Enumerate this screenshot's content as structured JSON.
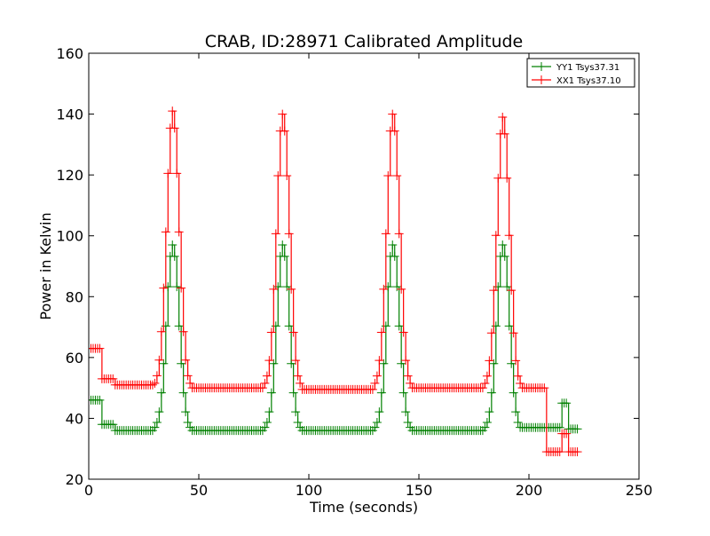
{
  "chart_data": {
    "type": "line",
    "title": "CRAB, ID:28971 Calibrated Amplitude",
    "xlabel": "Time (seconds)",
    "ylabel": "Power in Kelvin",
    "xlim": [
      0,
      250
    ],
    "ylim": [
      20,
      160
    ],
    "xticks": [
      0,
      50,
      100,
      150,
      200,
      250
    ],
    "yticks": [
      20,
      40,
      60,
      80,
      100,
      120,
      140,
      160
    ],
    "grid": false,
    "legend_position": "top-right",
    "marker": "+",
    "sample_step_seconds": 1,
    "series": [
      {
        "name": "YY1 Tsys37.31",
        "color": "#008000",
        "segments": [
          {
            "from": 0,
            "to": 5,
            "value": 46
          },
          {
            "from": 6,
            "to": 11,
            "value": 38
          },
          {
            "from": 12,
            "to": 29,
            "value": 36
          },
          {
            "peak_start": 30,
            "peak_end": 46,
            "peak_time": 38,
            "peak_value": 97,
            "base": 36
          },
          {
            "from": 47,
            "to": 79,
            "value": 36
          },
          {
            "peak_start": 80,
            "peak_end": 96,
            "peak_time": 88,
            "peak_value": 97,
            "base": 36
          },
          {
            "from": 97,
            "to": 129,
            "value": 36
          },
          {
            "peak_start": 130,
            "peak_end": 146,
            "peak_time": 138,
            "peak_value": 97,
            "base": 36
          },
          {
            "from": 147,
            "to": 179,
            "value": 36
          },
          {
            "peak_start": 180,
            "peak_end": 196,
            "peak_time": 188,
            "peak_value": 97,
            "base": 36
          },
          {
            "from": 197,
            "to": 214,
            "value": 37
          },
          {
            "from": 215,
            "to": 217,
            "value": 45
          },
          {
            "from": 218,
            "to": 222,
            "value": 36.5
          }
        ]
      },
      {
        "name": "XX1 Tsys37.10",
        "color": "#ff0000",
        "segments": [
          {
            "from": 0,
            "to": 5,
            "value": 63
          },
          {
            "from": 6,
            "to": 11,
            "value": 53
          },
          {
            "from": 12,
            "to": 29,
            "value": 51
          },
          {
            "peak_start": 30,
            "peak_end": 46,
            "peak_time": 38,
            "peak_value": 141,
            "base": 50
          },
          {
            "from": 47,
            "to": 79,
            "value": 50
          },
          {
            "peak_start": 80,
            "peak_end": 96,
            "peak_time": 88,
            "peak_value": 140,
            "base": 50
          },
          {
            "from": 97,
            "to": 129,
            "value": 49.5
          },
          {
            "peak_start": 130,
            "peak_end": 146,
            "peak_time": 138,
            "peak_value": 140,
            "base": 50
          },
          {
            "from": 147,
            "to": 179,
            "value": 50
          },
          {
            "peak_start": 180,
            "peak_end": 196,
            "peak_time": 188,
            "peak_value": 139,
            "base": 50
          },
          {
            "from": 197,
            "to": 207,
            "value": 50
          },
          {
            "from": 208,
            "to": 214,
            "value": 29
          },
          {
            "from": 215,
            "to": 217,
            "value": 35
          },
          {
            "from": 218,
            "to": 222,
            "value": 29
          }
        ]
      }
    ]
  }
}
